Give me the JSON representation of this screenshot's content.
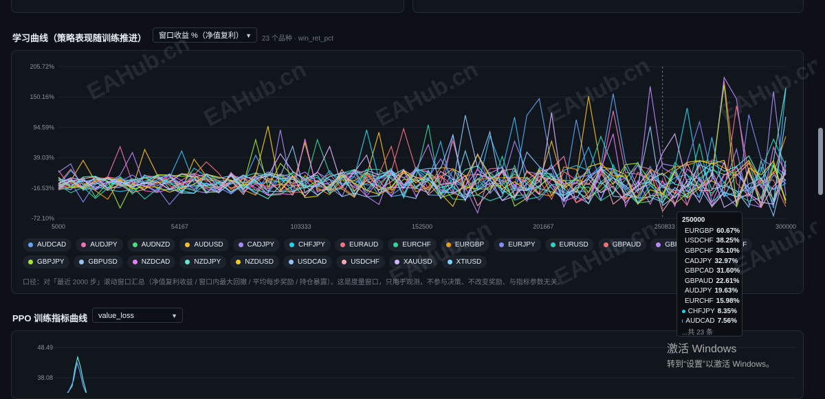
{
  "main": {
    "section_title": "学习曲线（策略表现随训练推进）",
    "metric_select": "窗口收益 %（净值复利）",
    "metric_note": "23 个品种 · win_ret_pct",
    "caption": "口径：对「最近 2000 步」滚动窗口汇总（净值复利收益 / 窗口内最大回撤 / 平均每步奖励 / 持仓暴露）。这是度量窗口，只用于观测，不参与决策、不改变奖励、与指标参数无关。"
  },
  "ppo": {
    "section_title": "PPO 训练指标曲线",
    "select_value": "value_loss",
    "y_ticks": [
      "48.49",
      "38.08"
    ]
  },
  "legend": [
    {
      "name": "AUDCAD",
      "color": "#60a5fa"
    },
    {
      "name": "AUDJPY",
      "color": "#f472b6"
    },
    {
      "name": "AUDNZD",
      "color": "#4ade80"
    },
    {
      "name": "AUDUSD",
      "color": "#fbbf24"
    },
    {
      "name": "CADJPY",
      "color": "#a78bfa"
    },
    {
      "name": "CHFJPY",
      "color": "#22d3ee"
    },
    {
      "name": "EURAUD",
      "color": "#fb7185"
    },
    {
      "name": "EURCHF",
      "color": "#34d399"
    },
    {
      "name": "EURGBP",
      "color": "#f59e0b"
    },
    {
      "name": "EURJPY",
      "color": "#818cf8"
    },
    {
      "name": "EURUSD",
      "color": "#2dd4bf"
    },
    {
      "name": "GBPAUD",
      "color": "#f87171"
    },
    {
      "name": "GBPCAD",
      "color": "#c084fc"
    },
    {
      "name": "GBPCHF",
      "color": "#38bdf8"
    },
    {
      "name": "GBPJPY",
      "color": "#a3e635"
    },
    {
      "name": "GBPUSD",
      "color": "#93c5fd"
    },
    {
      "name": "NZDCAD",
      "color": "#e879f9"
    },
    {
      "name": "NZDJPY",
      "color": "#5eead4"
    },
    {
      "name": "NZDUSD",
      "color": "#facc15"
    },
    {
      "name": "USDCAD",
      "color": "#93c5fd"
    },
    {
      "name": "USDCHF",
      "color": "#fda4af"
    },
    {
      "name": "XAUUSD",
      "color": "#d8b4fe"
    },
    {
      "name": "XTIUSD",
      "color": "#7dd3fc"
    }
  ],
  "tooltip": {
    "title": "250000",
    "rows": [
      {
        "name": "EURGBP",
        "value": "60.67%",
        "color": "#f59e0b"
      },
      {
        "name": "USDCHF",
        "value": "38.25%",
        "color": "#fda4af"
      },
      {
        "name": "GBPCHF",
        "value": "35.10%",
        "color": "#38bdf8"
      },
      {
        "name": "CADJPY",
        "value": "32.97%",
        "color": "#a78bfa"
      },
      {
        "name": "GBPCAD",
        "value": "31.60%",
        "color": "#c084fc"
      },
      {
        "name": "GBPAUD",
        "value": "22.61%",
        "color": "#f87171"
      },
      {
        "name": "AUDJPY",
        "value": "19.63%",
        "color": "#f472b6"
      },
      {
        "name": "EURCHF",
        "value": "15.98%",
        "color": "#34d399"
      },
      {
        "name": "CHFJPY",
        "value": "8.35%",
        "color": "#22d3ee"
      },
      {
        "name": "AUDCAD",
        "value": "7.56%",
        "color": "#60a5fa"
      }
    ],
    "more": "...共 23 条"
  },
  "watermark": "EAHub.cn",
  "windows": {
    "line1": "激活 Windows",
    "line2": "转到“设置”以激活 Windows。"
  },
  "chart_data": {
    "type": "line",
    "ylabel": "",
    "xlabel": "",
    "y_ticks": [
      "205.72%",
      "150.16%",
      "94.59%",
      "39.03%",
      "-16.53%",
      "-72.10%"
    ],
    "x_ticks": [
      "5000",
      "54167",
      "103333",
      "152500",
      "201667",
      "250833",
      "300000"
    ],
    "ylim": [
      -72.1,
      205.72
    ],
    "xlim": [
      5000,
      300000
    ],
    "series_count": 23,
    "hover_x": 250000
  }
}
